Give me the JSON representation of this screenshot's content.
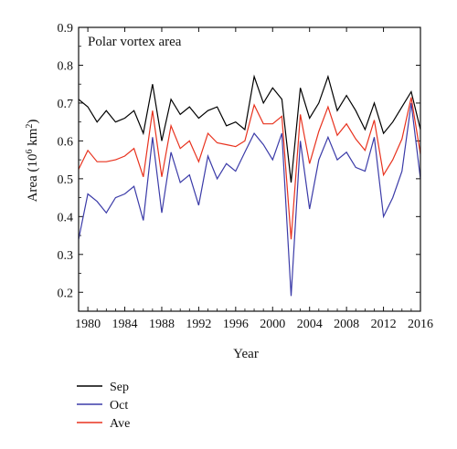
{
  "chart_data": {
    "type": "line",
    "annotation": "Polar vortex area",
    "xlabel": "Year",
    "ylabel_prefix": "Area (10",
    "ylabel_sup1": "6",
    "ylabel_mid": " km",
    "ylabel_sup2": "2",
    "ylabel_suffix": ")",
    "xlim": [
      1979,
      2016
    ],
    "ylim": [
      0.15,
      0.9
    ],
    "x_ticks": [
      1980,
      1984,
      1988,
      1992,
      1996,
      2000,
      2004,
      2008,
      2012,
      2016
    ],
    "y_ticks": [
      0.2,
      0.3,
      0.4,
      0.5,
      0.6,
      0.7,
      0.8,
      0.9
    ],
    "x": [
      1979,
      1980,
      1981,
      1982,
      1983,
      1984,
      1985,
      1986,
      1987,
      1988,
      1989,
      1990,
      1991,
      1992,
      1993,
      1994,
      1995,
      1996,
      1997,
      1998,
      1999,
      2000,
      2001,
      2002,
      2003,
      2004,
      2005,
      2006,
      2007,
      2008,
      2009,
      2010,
      2011,
      2012,
      2013,
      2014,
      2015,
      2016
    ],
    "series": [
      {
        "name": "Sep",
        "color": "#000000",
        "values": [
          0.71,
          0.69,
          0.65,
          0.68,
          0.65,
          0.66,
          0.68,
          0.62,
          0.75,
          0.6,
          0.71,
          0.67,
          0.69,
          0.66,
          0.68,
          0.69,
          0.64,
          0.65,
          0.63,
          0.77,
          0.7,
          0.74,
          0.71,
          0.49,
          0.74,
          0.66,
          0.7,
          0.77,
          0.68,
          0.72,
          0.68,
          0.63,
          0.7,
          0.62,
          0.65,
          0.69,
          0.73,
          0.63
        ]
      },
      {
        "name": "Oct",
        "color": "#3b3ba8",
        "values": [
          0.34,
          0.46,
          0.44,
          0.41,
          0.45,
          0.46,
          0.48,
          0.39,
          0.61,
          0.41,
          0.57,
          0.49,
          0.51,
          0.43,
          0.56,
          0.5,
          0.54,
          0.52,
          0.57,
          0.62,
          0.59,
          0.55,
          0.62,
          0.19,
          0.6,
          0.42,
          0.55,
          0.61,
          0.55,
          0.57,
          0.53,
          0.52,
          0.61,
          0.4,
          0.45,
          0.52,
          0.7,
          0.5
        ]
      },
      {
        "name": "Ave",
        "color": "#e8321e",
        "values": [
          0.525,
          0.575,
          0.545,
          0.545,
          0.55,
          0.56,
          0.58,
          0.505,
          0.68,
          0.505,
          0.64,
          0.58,
          0.6,
          0.545,
          0.62,
          0.595,
          0.59,
          0.585,
          0.6,
          0.695,
          0.645,
          0.645,
          0.665,
          0.34,
          0.67,
          0.54,
          0.625,
          0.69,
          0.615,
          0.645,
          0.605,
          0.575,
          0.655,
          0.51,
          0.55,
          0.605,
          0.715,
          0.565
        ]
      }
    ],
    "legend": {
      "placement": "bottom-left",
      "entries": [
        "Sep",
        "Oct",
        "Ave"
      ]
    }
  }
}
